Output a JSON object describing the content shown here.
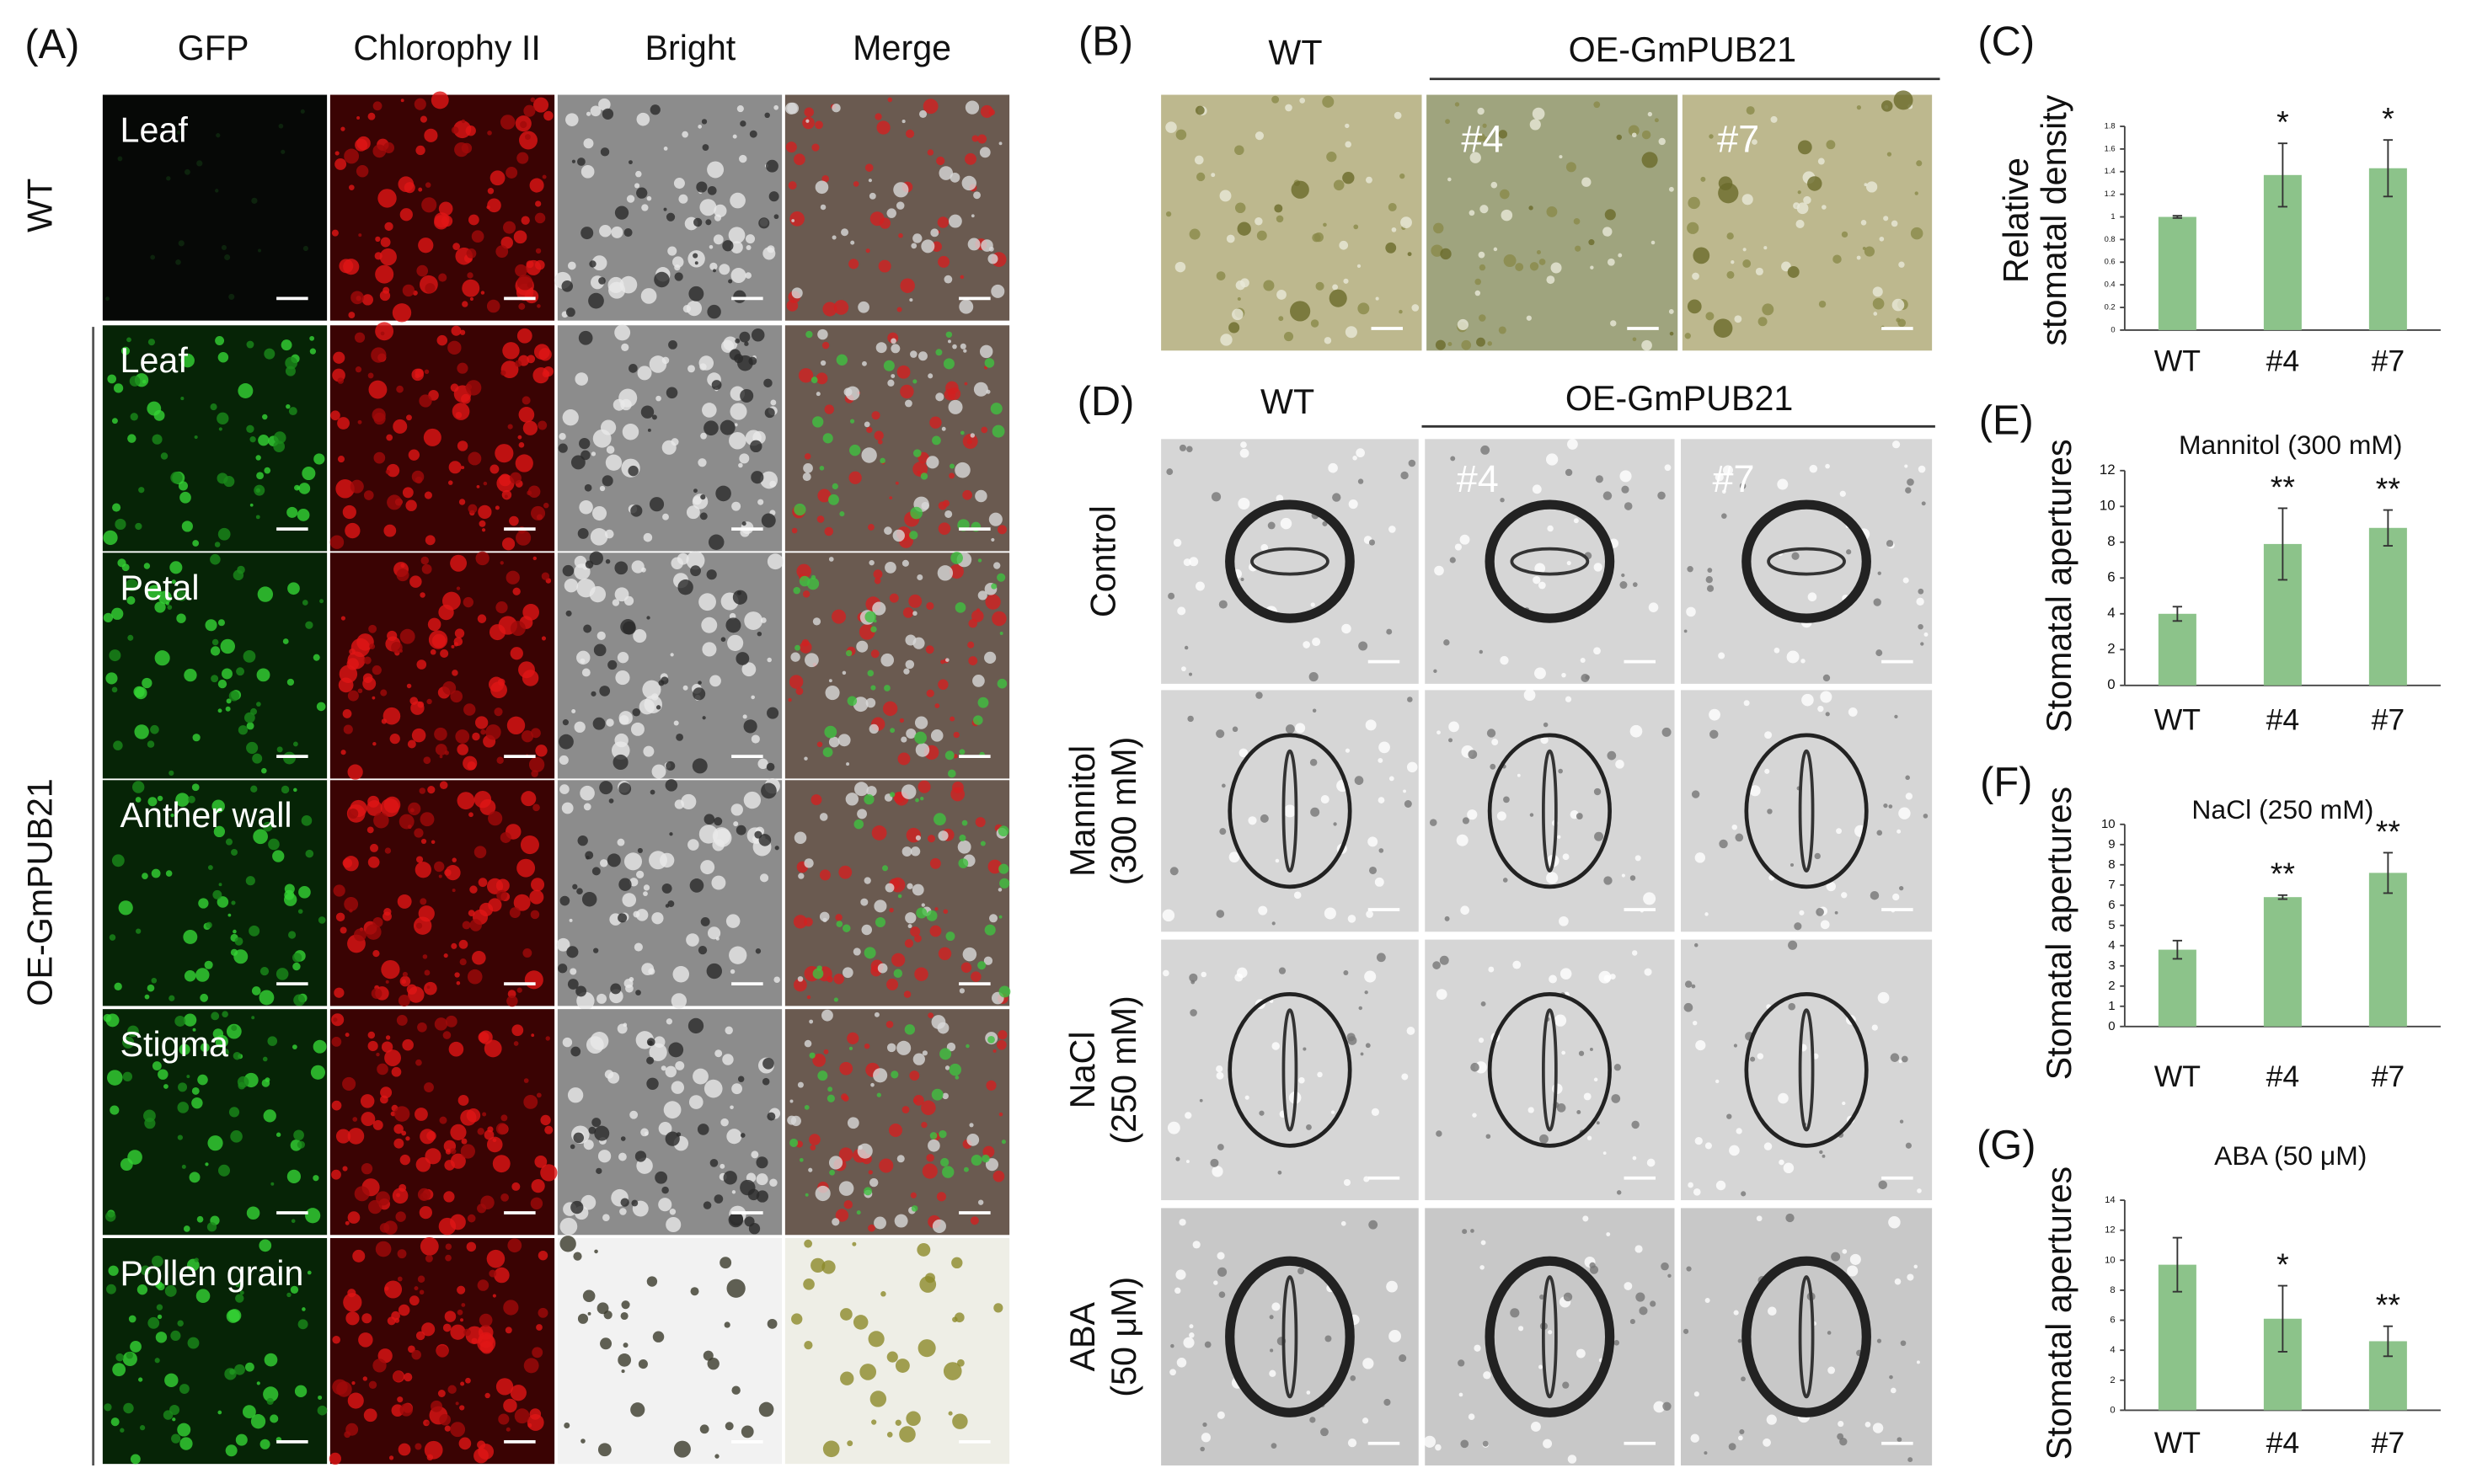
{
  "panel_a": {
    "label": "(A)",
    "columns": [
      "GFP",
      "Chlorophy II",
      "Bright",
      "Merge"
    ],
    "groups": [
      "WT",
      "OE-GmPUB21"
    ],
    "rows": [
      "Leaf",
      "Leaf",
      "Petal",
      "Anther wall",
      "Stigma",
      "Pollen grain"
    ]
  },
  "panel_b": {
    "label": "(B)",
    "wt": "WT",
    "transgenic": "OE-GmPUB21",
    "lines": [
      "#4",
      "#7"
    ]
  },
  "panel_d": {
    "label": "(D)",
    "wt": "WT",
    "transgenic": "OE-GmPUB21",
    "lines": [
      "#4",
      "#7"
    ],
    "rows": [
      [
        "Control"
      ],
      [
        "Mannitol",
        "(300 mM)"
      ],
      [
        "NaCl",
        "(250 mM)"
      ],
      [
        "ABA",
        "(50 μM)"
      ]
    ]
  },
  "chart_data": [
    {
      "type": "bar",
      "label": "(C)",
      "ylabel": [
        "Relative",
        "stomatal density"
      ],
      "categories": [
        "WT",
        "#4",
        "#7"
      ],
      "values": [
        1.0,
        1.37,
        1.43
      ],
      "errors": [
        0.01,
        0.28,
        0.25
      ],
      "significance": [
        null,
        "*",
        "*"
      ],
      "ylim": [
        0,
        1.8
      ],
      "yticks": [
        0,
        0.2,
        0.4,
        0.6,
        0.8,
        1,
        1.2,
        1.4,
        1.6,
        1.8
      ],
      "color": "#8cc38a"
    },
    {
      "type": "bar",
      "label": "(E)",
      "title": "Mannitol (300 mM)",
      "ylabel": "Stomatal apertures",
      "categories": [
        "WT",
        "#4",
        "#7"
      ],
      "values": [
        4.0,
        7.9,
        8.8
      ],
      "errors": [
        0.4,
        2.0,
        1.0
      ],
      "significance": [
        null,
        "**",
        "**"
      ],
      "ylim": [
        0,
        12
      ],
      "yticks": [
        0,
        2,
        4,
        6,
        8,
        10,
        12
      ],
      "color": "#8cc38a"
    },
    {
      "type": "bar",
      "label": "(F)",
      "title": "NaCl (250 mM)",
      "ylabel": "Stomatal apertures",
      "categories": [
        "WT",
        "#4",
        "#7"
      ],
      "values": [
        3.8,
        6.4,
        7.6
      ],
      "errors": [
        0.45,
        0.1,
        1.0
      ],
      "significance": [
        null,
        "**",
        "**"
      ],
      "ylim": [
        0,
        10
      ],
      "yticks": [
        0,
        1,
        2,
        3,
        4,
        5,
        6,
        7,
        8,
        9,
        10
      ],
      "color": "#8cc38a"
    },
    {
      "type": "bar",
      "label": "(G)",
      "title": "ABA (50 μM)",
      "ylabel": "Stomatal apertures",
      "categories": [
        "WT",
        "#4",
        "#7"
      ],
      "values": [
        9.7,
        6.1,
        4.6
      ],
      "errors": [
        1.8,
        2.2,
        1.0
      ],
      "significance": [
        null,
        "*",
        "**"
      ],
      "ylim": [
        0,
        14
      ],
      "yticks": [
        0,
        2,
        4,
        6,
        8,
        10,
        12,
        14
      ],
      "color": "#8cc38a"
    }
  ]
}
